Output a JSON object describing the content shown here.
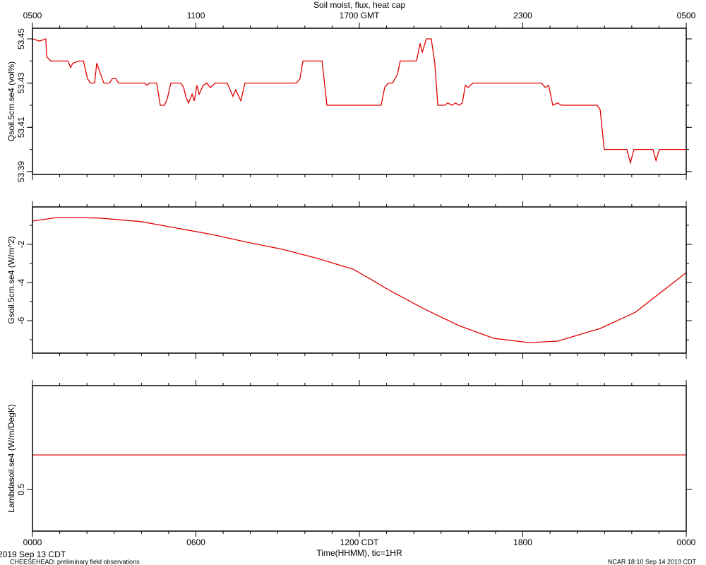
{
  "chart_data": [
    {
      "type": "line",
      "title": "Soil moist, flux, heat cap",
      "ylabel": "Qsoil.5cm.se4 (vol%)",
      "xlim": [
        0,
        24
      ],
      "xticks": [
        {
          "value": 0,
          "label": "0500"
        },
        {
          "value": 6,
          "label": "1100"
        },
        {
          "value": 12,
          "label": "1700 GMT"
        },
        {
          "value": 18,
          "label": "2300"
        },
        {
          "value": 24,
          "label": "0500"
        }
      ],
      "xminor_step": 1,
      "ylim": [
        53.3887,
        53.4548
      ],
      "yticks": [
        53.39,
        53.41,
        53.43,
        53.45
      ],
      "yminor_step": 0.01,
      "color": "#e00000",
      "x": [
        0,
        0.26,
        0.49,
        0.52,
        0.67,
        1.3,
        1.4,
        1.48,
        1.71,
        1.87,
        2.02,
        2.13,
        2.28,
        2.36,
        2.62,
        2.83,
        2.93,
        3.06,
        3.16,
        4.12,
        4.2,
        4.3,
        4.56,
        4.69,
        4.85,
        4.95,
        5.08,
        5.44,
        5.55,
        5.65,
        5.73,
        5.86,
        5.94,
        6.04,
        6.12,
        6.27,
        6.4,
        6.53,
        6.71,
        7.15,
        7.36,
        7.46,
        7.65,
        7.8,
        9.69,
        9.82,
        9.93,
        10.08,
        10.63,
        10.81,
        12.8,
        12.93,
        13.06,
        13.22,
        13.4,
        13.5,
        13.66,
        14.1,
        14.23,
        14.31,
        14.46,
        14.64,
        14.77,
        14.88,
        15.14,
        15.24,
        15.4,
        15.53,
        15.66,
        15.78,
        15.89,
        15.99,
        16.17,
        18.69,
        18.82,
        18.95,
        19.1,
        19.28,
        19.41,
        20.73,
        20.84,
        20.99,
        21.82,
        21.95,
        22.08,
        22.21,
        22.78,
        22.89,
        23.01,
        23.61,
        24
      ],
      "values": [
        53.45,
        53.449,
        53.45,
        53.442,
        53.44,
        53.44,
        53.437,
        53.439,
        53.44,
        53.44,
        53.432,
        53.43,
        53.43,
        53.439,
        53.43,
        53.43,
        53.432,
        53.432,
        53.43,
        53.43,
        53.429,
        53.43,
        53.43,
        53.42,
        53.42,
        53.423,
        53.43,
        53.43,
        53.428,
        53.423,
        53.421,
        53.425,
        53.422,
        53.429,
        53.425,
        53.429,
        53.43,
        53.428,
        53.43,
        53.43,
        53.424,
        53.427,
        53.422,
        53.43,
        53.43,
        53.432,
        53.44,
        53.44,
        53.44,
        53.42,
        53.42,
        53.428,
        53.43,
        53.43,
        53.434,
        53.44,
        53.44,
        53.44,
        53.448,
        53.444,
        53.45,
        53.45,
        53.439,
        53.42,
        53.42,
        53.421,
        53.42,
        53.421,
        53.42,
        53.421,
        53.429,
        53.428,
        53.43,
        53.43,
        53.428,
        53.429,
        53.42,
        53.421,
        53.42,
        53.42,
        53.418,
        53.4,
        53.4,
        53.394,
        53.4,
        53.4,
        53.4,
        53.395,
        53.4,
        53.4,
        53.4
      ]
    },
    {
      "type": "line",
      "ylabel": "Gsoil.5cm.se4 (W/m^2)",
      "xlim": [
        0,
        24
      ],
      "xticks": [
        0,
        6,
        12,
        18,
        24
      ],
      "xminor_step": 1,
      "ylim": [
        -7.7,
        -0.04
      ],
      "yticks": [
        -6,
        -4,
        -2
      ],
      "yminor_step": 1,
      "color": "#e00000",
      "x": [
        0,
        0.88,
        1.14,
        2.44,
        3.99,
        5.29,
        6.58,
        7.88,
        9.18,
        10.47,
        11.77,
        12.4,
        13.06,
        14.36,
        15.66,
        16.95,
        18.25,
        19.28,
        20.84,
        22.13,
        24
      ],
      "values": [
        -0.78,
        -0.6,
        -0.59,
        -0.62,
        -0.81,
        -1.15,
        -1.48,
        -1.89,
        -2.26,
        -2.74,
        -3.3,
        -3.81,
        -4.37,
        -5.37,
        -6.26,
        -6.93,
        -7.15,
        -7.07,
        -6.41,
        -5.56,
        -3.48
      ]
    },
    {
      "type": "line",
      "ylabel": "Lambdasoil.se4 (W/m/DegK)",
      "xlabel": "Time(HHMM), tic=1HR",
      "xlim": [
        0,
        24
      ],
      "xticks": [
        {
          "value": 0,
          "label": "0000"
        },
        {
          "value": 6,
          "label": "0600"
        },
        {
          "value": 12,
          "label": "1200 CDT"
        },
        {
          "value": 18,
          "label": "1800"
        },
        {
          "value": 24,
          "label": "0000"
        }
      ],
      "xminor_step": 1,
      "ylim": [
        0.44,
        0.65
      ],
      "yticks": [
        0.5
      ],
      "color": "#e00000",
      "x": [
        0,
        24
      ],
      "values": [
        0.55,
        0.55
      ]
    }
  ],
  "footer": {
    "date": "2019 Sep 13 CDT",
    "project": "CHEESEHEAD: preliminary field observations",
    "stamp": "NCAR 18:10 Sep 14 2019 CDT"
  }
}
